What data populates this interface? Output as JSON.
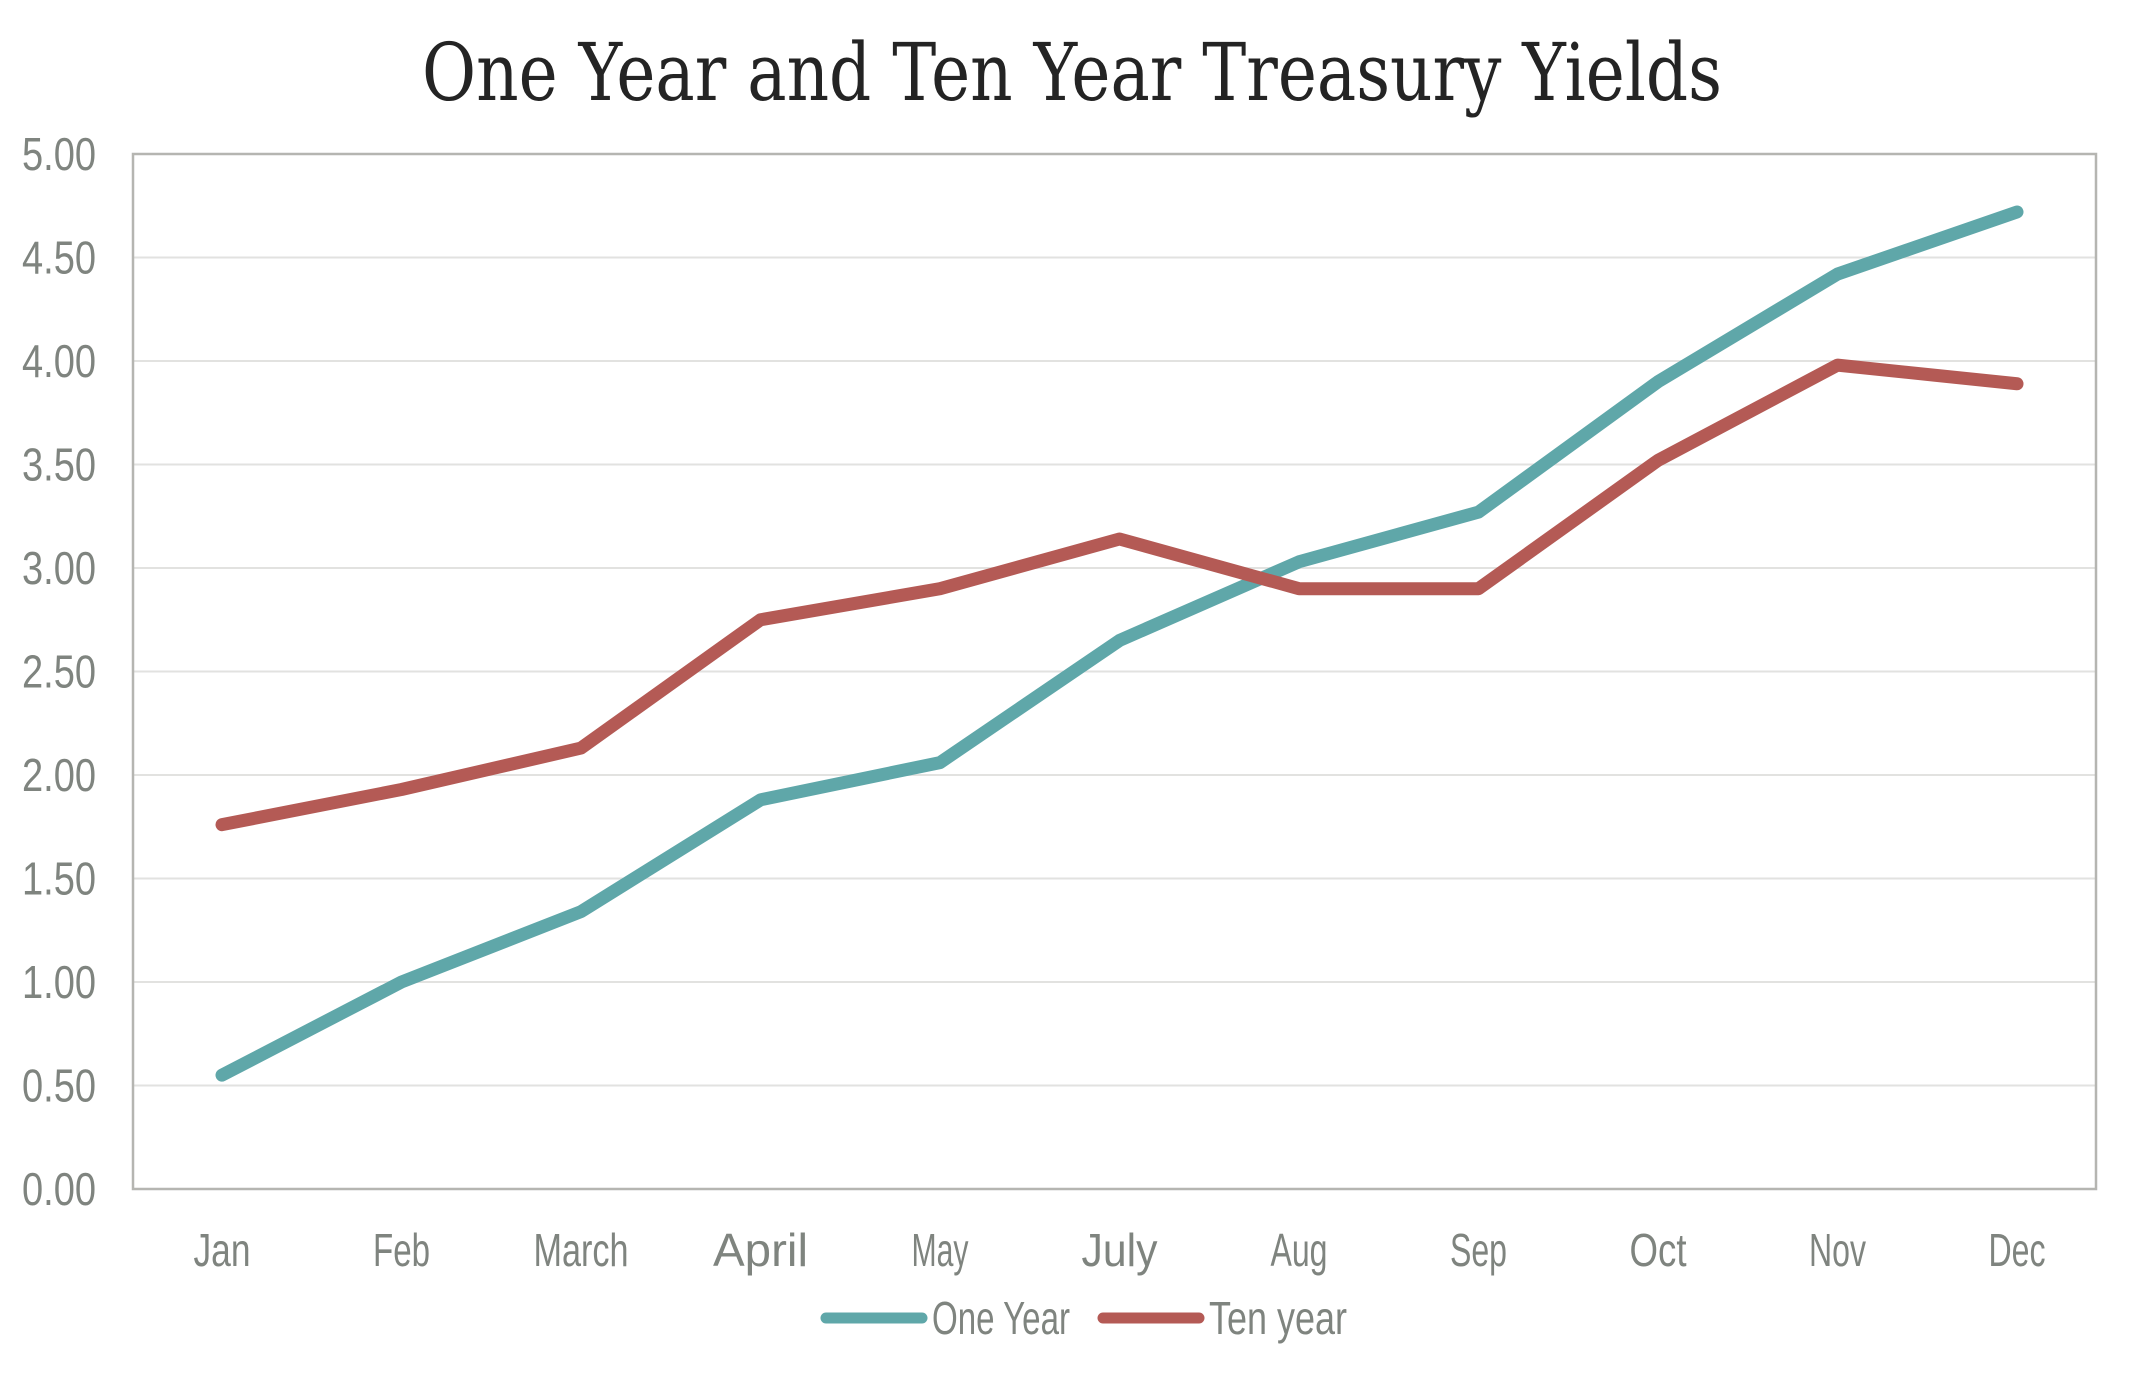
{
  "page": {
    "background_color": "#ffffff"
  },
  "chart_data": {
    "type": "line",
    "title": "One Year and Ten Year Treasury Yields",
    "title_color": "#242424",
    "xlabel": "",
    "ylabel": "",
    "categories": [
      "Jan",
      "Feb",
      "March",
      "April",
      "May",
      "July",
      "Aug",
      "Sep",
      "Oct",
      "Nov",
      "Dec"
    ],
    "series": [
      {
        "name": "One Year",
        "color": "#5fa7a9",
        "values": [
          0.55,
          1.0,
          1.34,
          1.88,
          2.06,
          2.65,
          3.03,
          3.27,
          3.9,
          4.42,
          4.72
        ]
      },
      {
        "name": "Ten year",
        "color": "#b45a55",
        "values": [
          1.76,
          1.93,
          2.13,
          2.75,
          2.9,
          3.14,
          2.9,
          2.9,
          3.52,
          3.98,
          3.89
        ]
      }
    ],
    "ylim": [
      0,
      5
    ],
    "ytick_step": 0.5,
    "ytick_labels": [
      "5.00",
      "4.50",
      "4.00",
      "3.50",
      "3.00",
      "2.50",
      "2.00",
      "1.50",
      "1.00",
      "0.50",
      "0.00"
    ],
    "grid": true,
    "gridline_color": "#e2e2e0",
    "plot_border_color": "#b5b5b1",
    "axis_text_color": "#7f847f",
    "legend_position": "bottom",
    "legend_text_color": "#7f847f"
  }
}
